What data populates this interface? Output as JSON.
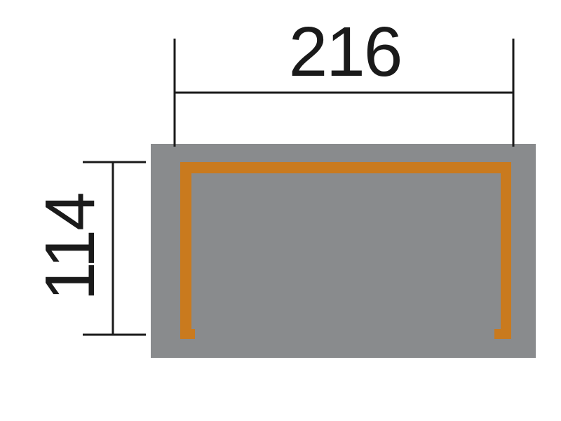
{
  "diagram": {
    "width_label": "216",
    "height_label": "114",
    "colors": {
      "slab": "#898b8d",
      "frame": "#c97a1e",
      "line": "#1a1a1a"
    }
  }
}
